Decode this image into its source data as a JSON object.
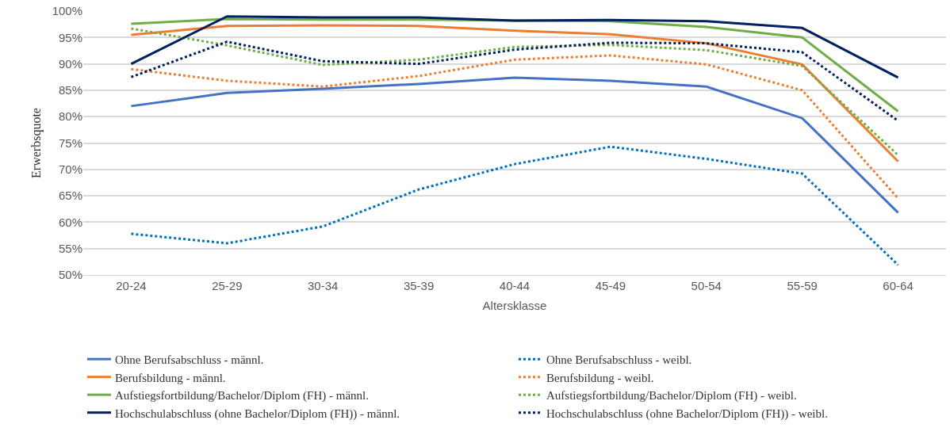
{
  "chart_data": {
    "type": "line",
    "xlabel": "Altersklasse",
    "ylabel": "Erwerbsquote",
    "categories": [
      "20-24",
      "25-29",
      "30-34",
      "35-39",
      "40-44",
      "45-49",
      "50-54",
      "55-59",
      "60-64"
    ],
    "ylim": [
      50,
      100
    ],
    "yticks": [
      {
        "value": 50,
        "label": "50%"
      },
      {
        "value": 55,
        "label": "55%"
      },
      {
        "value": 60,
        "label": "60%"
      },
      {
        "value": 65,
        "label": "65%"
      },
      {
        "value": 70,
        "label": "70%"
      },
      {
        "value": 75,
        "label": "75%"
      },
      {
        "value": 80,
        "label": "80%"
      },
      {
        "value": 85,
        "label": "85%"
      },
      {
        "value": 90,
        "label": "90%"
      },
      {
        "value": 95,
        "label": "95%"
      },
      {
        "value": 100,
        "label": "100%"
      }
    ],
    "grid": "y",
    "legend": "bottom",
    "marker": "none",
    "series": [
      {
        "name": "Ohne Berufsabschluss - männl.",
        "color": "#4472c4",
        "line_style": "solid",
        "values": [
          82,
          84.5,
          85.3,
          86.2,
          87.4,
          86.8,
          85.7,
          79.7,
          61.8
        ]
      },
      {
        "name": "Ohne Berufsabschluss - weibl.",
        "color": "#0070c0",
        "line_style": "dotted",
        "values": [
          57.8,
          56,
          59.2,
          66.2,
          71,
          74.3,
          72,
          69.2,
          51.9
        ]
      },
      {
        "name": "Berufsbildung - männl.",
        "color": "#ed7d31",
        "line_style": "solid",
        "values": [
          95.5,
          97.2,
          97.3,
          97.2,
          96.3,
          95.6,
          93.9,
          89.9,
          71.5
        ]
      },
      {
        "name": "Berufsbildung - weibl.",
        "color": "#ed7d31",
        "line_style": "dotted",
        "values": [
          89,
          86.8,
          85.7,
          87.7,
          90.8,
          91.6,
          89.9,
          85,
          64.5
        ]
      },
      {
        "name": "Aufstiegsfortbildung/Bachelor/Diplom (FH) - männl.",
        "color": "#70ad47",
        "line_style": "solid",
        "values": [
          97.6,
          98.5,
          98.4,
          98.4,
          98.2,
          98.1,
          97,
          95,
          81
        ]
      },
      {
        "name": "Aufstiegsfortbildung/Bachelor/Diplom (FH) - weibl.",
        "color": "#70ad47",
        "line_style": "dotted",
        "values": [
          96.7,
          93.5,
          89.8,
          90.8,
          93.2,
          93.6,
          92.6,
          89.6,
          72.7
        ]
      },
      {
        "name": "Hochschulabschluss (ohne Bachelor/Diplom (FH)) - männl.",
        "color": "#002060",
        "line_style": "solid",
        "values": [
          90,
          99,
          98.8,
          98.8,
          98.2,
          98.3,
          98.1,
          96.8,
          87.4
        ]
      },
      {
        "name": "Hochschulabschluss (ohne Bachelor/Diplom (FH)) - weibl.",
        "color": "#002060",
        "line_style": "dotted",
        "values": [
          87.5,
          94.2,
          90.5,
          90,
          92.7,
          94,
          93.9,
          92.2,
          79.2
        ]
      }
    ]
  }
}
